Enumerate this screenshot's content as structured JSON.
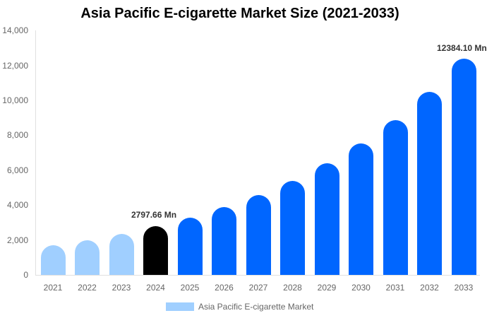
{
  "chart_data": {
    "type": "bar",
    "title": "Asia Pacific E-cigarette Market Size (2021-2033)",
    "xlabel": "",
    "ylabel": "",
    "ylim": [
      0,
      14000
    ],
    "yticks": [
      "0",
      "2,000",
      "4,000",
      "6,000",
      "8,000",
      "10,000",
      "12,000",
      "14,000"
    ],
    "categories": [
      "2021",
      "2022",
      "2023",
      "2024",
      "2025",
      "2026",
      "2027",
      "2028",
      "2029",
      "2030",
      "2031",
      "2032",
      "2033"
    ],
    "series": [
      {
        "name": "Asia Pacific E-cigarette Market",
        "values": [
          1700,
          1980,
          2350,
          2797.66,
          3280,
          3880,
          4570,
          5380,
          6390,
          7530,
          8860,
          10480,
          12384.1
        ]
      }
    ],
    "annotations": [
      {
        "category": "2024",
        "text": "2797.66 Mn"
      },
      {
        "category": "2033",
        "text": "12384.10 Mn"
      }
    ],
    "colors": {
      "historical": "#a0cfff",
      "base_year": "#000000",
      "forecast": "#0066ff"
    },
    "legend_position": "bottom",
    "grid": false
  },
  "legend": {
    "label": "Asia Pacific E-cigarette Market"
  }
}
